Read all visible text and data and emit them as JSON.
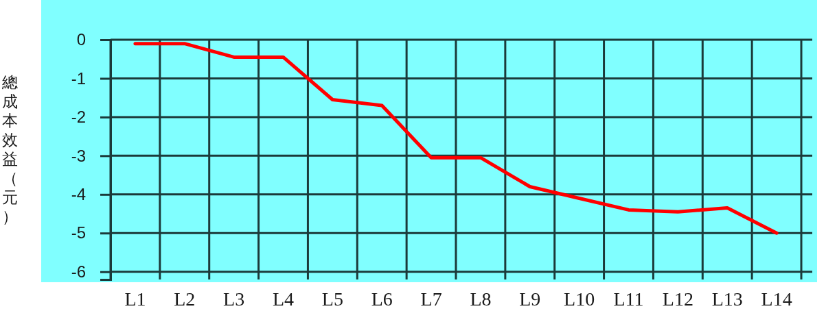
{
  "chart_data": {
    "type": "line",
    "ylabel": "總成本效益（元）",
    "categories": [
      "L1",
      "L2",
      "L3",
      "L4",
      "L5",
      "L6",
      "L7",
      "L8",
      "L9",
      "L10",
      "L11",
      "L12",
      "L13",
      "L14"
    ],
    "series": [
      {
        "color": "#ff0000",
        "values": [
          -0.1,
          -0.1,
          -0.45,
          -0.45,
          -1.55,
          -1.7,
          -3.05,
          -3.05,
          -3.8,
          -4.1,
          -4.4,
          -4.45,
          -4.35,
          -5.0
        ]
      }
    ],
    "ylim": [
      -6.2,
      0
    ],
    "yticks": [
      -6,
      -5,
      -4,
      -3,
      -2,
      -1,
      0
    ],
    "grid": true
  }
}
